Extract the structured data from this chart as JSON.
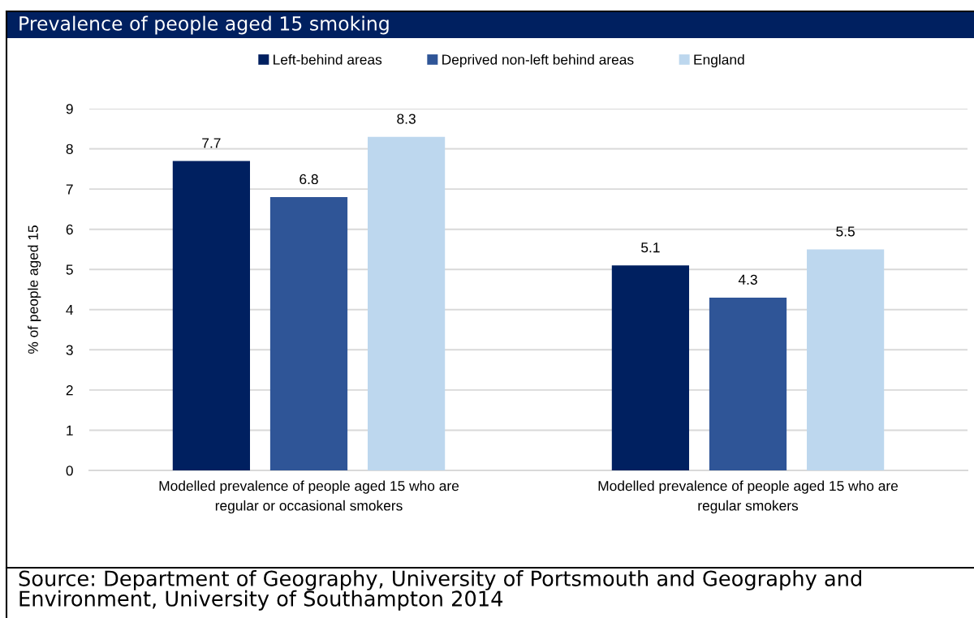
{
  "chart_data": {
    "type": "bar",
    "title": "Prevalence of people aged 15 smoking",
    "ylabel": "% of people aged 15",
    "categories": [
      "Modelled prevalence of people aged 15 who are\nregular or occasional smokers",
      "Modelled prevalence of people aged 15 who are\nregular smokers"
    ],
    "series": [
      {
        "name": "Left-behind areas",
        "color": "#002060",
        "values": [
          7.7,
          5.1
        ]
      },
      {
        "name": "Deprived non-left behind areas",
        "color": "#2f5597",
        "values": [
          6.8,
          4.3
        ]
      },
      {
        "name": "England",
        "color": "#bdd7ee",
        "values": [
          8.3,
          5.5
        ]
      }
    ],
    "ylim": [
      0,
      9
    ],
    "yticks": [
      0,
      1,
      2,
      3,
      4,
      5,
      6,
      7,
      8,
      9
    ],
    "grid": "y",
    "legend": "top",
    "data_labels": true,
    "annotations": [
      "Source: Department of Geography, University of Portsmouth and Geography and Environment, University of Southampton 2014"
    ]
  }
}
